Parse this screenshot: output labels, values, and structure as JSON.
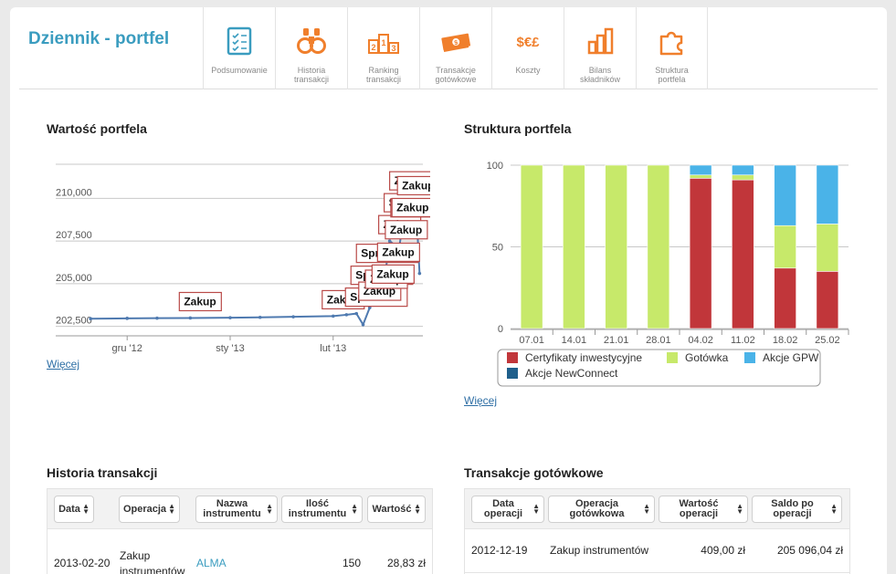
{
  "header": {
    "title": "Dziennik - portfel",
    "nav": [
      {
        "label": "Podsumowanie",
        "icon": "summary-checklist-icon"
      },
      {
        "label": "Historia\ntransakcji",
        "icon": "binoculars-icon"
      },
      {
        "label": "Ranking\ntransakcji",
        "icon": "podium-icon"
      },
      {
        "label": "Transakcje\ngotówkowe",
        "icon": "banknote-icon"
      },
      {
        "label": "Koszty",
        "icon": "currency-symbols-icon"
      },
      {
        "label": "Bilans\nskładników",
        "icon": "bar-chart-icon"
      },
      {
        "label": "Struktura\nportfela",
        "icon": "puzzle-icon"
      }
    ]
  },
  "colors": {
    "brand": "#3a9cbf",
    "icon_orange": "#f07f2c",
    "line": "#4f7ab0"
  },
  "value_section": {
    "title": "Wartość portfela",
    "more_link": "Więcej"
  },
  "structure_section": {
    "title": "Struktura portfela",
    "more_link": "Więcej"
  },
  "history_section": {
    "title": "Historia transakcji",
    "columns": [
      "Data",
      "Operacja",
      "Nazwa\ninstrumentu",
      "Ilość\ninstrumentu",
      "Wartość"
    ],
    "rows": [
      {
        "date": "2013-02-20",
        "operation": "Zakup\ninstrumentów",
        "instrument": "ALMA",
        "quantity": "150",
        "value": "28,83 zł"
      }
    ]
  },
  "cash_section": {
    "title": "Transakcje gotówkowe",
    "columns": [
      "Data\noperacji",
      "Operacja\ngotówkowa",
      "Wartość\noperacji",
      "Saldo po\noperacji"
    ],
    "rows": [
      {
        "date": "2012-12-19",
        "operation": "Zakup instrumentów",
        "value": "409,00 zł",
        "balance": "205 096,04 zł"
      }
    ]
  },
  "chart_data": [
    {
      "type": "line",
      "title": "Wartość portfela",
      "ylim": [
        202000,
        212000
      ],
      "y_ticks": [
        "202,500",
        "205,000",
        "207,500",
        "210,000"
      ],
      "x_ticks": [
        "gru '12",
        "sty '13",
        "lut '13"
      ],
      "x": [
        "2012-11-20",
        "2012-12-01",
        "2012-12-10",
        "2012-12-20",
        "2013-01-01",
        "2013-01-10",
        "2013-01-20",
        "2013-02-01",
        "2013-02-05",
        "2013-02-08",
        "2013-02-10",
        "2013-02-12",
        "2013-02-14",
        "2013-02-16",
        "2013-02-18",
        "2013-02-20",
        "2013-02-21",
        "2013-02-22",
        "2013-02-24",
        "2013-02-25",
        "2013-02-26",
        "2013-02-27"
      ],
      "y": [
        202950,
        202970,
        202980,
        202990,
        203010,
        203030,
        203060,
        203100,
        203180,
        203250,
        202600,
        203600,
        204300,
        204600,
        207500,
        207200,
        207300,
        208500,
        211400,
        209100,
        209400,
        205600
      ],
      "annotations": [
        {
          "date": "2012-12-20",
          "text": "Zakup"
        },
        {
          "date": "2013-02-01",
          "text": "Zakup"
        },
        {
          "date": "2013-02-08",
          "text": "Sprzedaż"
        },
        {
          "date": "2013-02-08",
          "text": "Sprzedaż"
        },
        {
          "date": "2013-02-08",
          "text": "Sprzedaż"
        },
        {
          "date": "2013-02-12",
          "text": "Zakup"
        },
        {
          "date": "2013-02-14",
          "text": "Zakup"
        },
        {
          "date": "2013-02-16",
          "text": "Zakup"
        },
        {
          "date": "2013-02-16",
          "text": "Zakup"
        },
        {
          "date": "2013-02-18",
          "text": "Zakup"
        },
        {
          "date": "2013-02-18",
          "text": "Sprzedaż"
        },
        {
          "date": "2013-02-18",
          "text": "Zakup"
        },
        {
          "date": "2013-02-20",
          "text": "Zakup"
        },
        {
          "date": "2013-02-20",
          "text": "Zakup"
        },
        {
          "date": "2013-02-22",
          "text": "Zakup"
        },
        {
          "date": "2013-02-22",
          "text": "Zakup"
        }
      ]
    },
    {
      "type": "bar",
      "stacked": true,
      "title": "Struktura portfela",
      "categories": [
        "07.01",
        "14.01",
        "21.01",
        "28.01",
        "04.02",
        "11.02",
        "18.02",
        "25.02"
      ],
      "ylim": [
        0,
        100
      ],
      "y_ticks": [
        "0",
        "50",
        "100"
      ],
      "legend_position": "bottom",
      "series": [
        {
          "name": "Certyfikaty inwestycyjne",
          "color": "#c1363a",
          "values": [
            0,
            0,
            0,
            0,
            92,
            91,
            37,
            35
          ]
        },
        {
          "name": "Gotówka",
          "color": "#c7e96a",
          "values": [
            100,
            100,
            100,
            100,
            2,
            3,
            26,
            29
          ]
        },
        {
          "name": "Akcje GPW",
          "color": "#4ab3e8",
          "values": [
            0,
            0,
            0,
            0,
            6,
            6,
            37,
            36
          ]
        },
        {
          "name": "Akcje NewConnect",
          "color": "#1f5f8b",
          "values": [
            0,
            0,
            0,
            0,
            0,
            0,
            0,
            0
          ]
        }
      ]
    }
  ]
}
